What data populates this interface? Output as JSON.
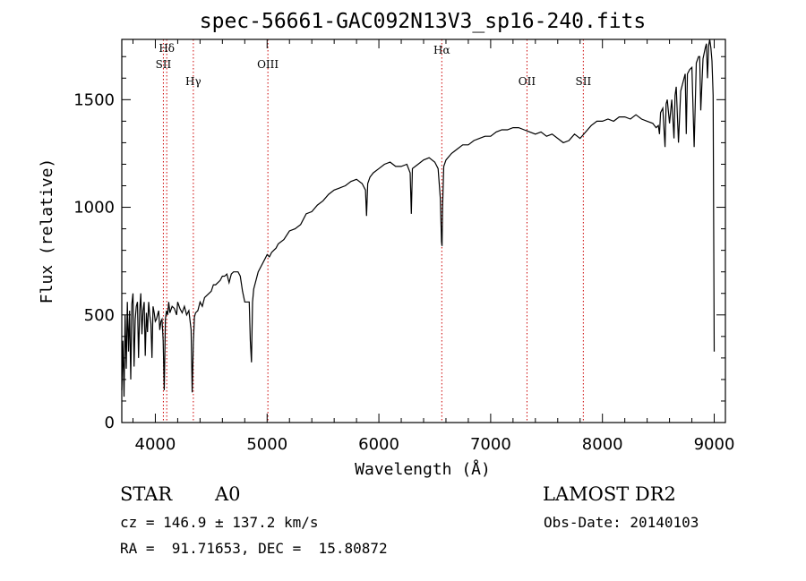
{
  "chart_data": {
    "type": "line",
    "title": "spec-56661-GAC092N13V3_sp16-240.fits",
    "xlabel": "Wavelength (Å)",
    "ylabel": "Flux (relative)",
    "xlim": [
      3700,
      9100
    ],
    "ylim": [
      0,
      1780
    ],
    "xticks": [
      4000,
      5000,
      6000,
      7000,
      8000,
      9000
    ],
    "yticks": [
      0,
      500,
      1000,
      1500
    ],
    "grid": false,
    "line_color": "#000000",
    "marker_color": "#cc0000",
    "line_markers": [
      {
        "label": "Hδ",
        "x": 4102
      },
      {
        "label": "SII",
        "x": 4072
      },
      {
        "label": "Hγ",
        "x": 4340
      },
      {
        "label": "OIII",
        "x": 5007
      },
      {
        "label": "Hα",
        "x": 6563
      },
      {
        "label": "OII",
        "x": 7325
      },
      {
        "label": "SII",
        "x": 7829
      }
    ],
    "series": [
      {
        "x": [
          3700,
          3710,
          3720,
          3730,
          3740,
          3750,
          3760,
          3770,
          3780,
          3790,
          3800,
          3810,
          3820,
          3830,
          3840,
          3850,
          3860,
          3870,
          3880,
          3890,
          3900,
          3910,
          3920,
          3930,
          3940,
          3950,
          3960,
          3970,
          3980,
          3990,
          4000,
          4010,
          4020,
          4030,
          4040,
          4050,
          4060,
          4070,
          4080,
          4090,
          4100,
          4110,
          4120,
          4130,
          4150,
          4170,
          4190,
          4200,
          4220,
          4240,
          4260,
          4280,
          4300,
          4320,
          4330,
          4340,
          4350,
          4360,
          4380,
          4400,
          4420,
          4440,
          4460,
          4480,
          4500,
          4520,
          4540,
          4560,
          4580,
          4600,
          4620,
          4640,
          4660,
          4680,
          4700,
          4720,
          4740,
          4760,
          4780,
          4800,
          4820,
          4840,
          4850,
          4860,
          4870,
          4880,
          4900,
          4920,
          4940,
          4960,
          4980,
          5000,
          5020,
          5040,
          5060,
          5080,
          5100,
          5150,
          5200,
          5250,
          5300,
          5350,
          5400,
          5450,
          5500,
          5550,
          5600,
          5650,
          5700,
          5750,
          5800,
          5850,
          5880,
          5890,
          5900,
          5920,
          5950,
          6000,
          6050,
          6100,
          6150,
          6200,
          6250,
          6280,
          6290,
          6300,
          6350,
          6400,
          6450,
          6500,
          6530,
          6550,
          6560,
          6565,
          6570,
          6580,
          6600,
          6650,
          6700,
          6750,
          6800,
          6850,
          6900,
          6950,
          7000,
          7050,
          7100,
          7150,
          7200,
          7250,
          7300,
          7350,
          7400,
          7450,
          7500,
          7550,
          7600,
          7650,
          7700,
          7750,
          7800,
          7850,
          7900,
          7950,
          8000,
          8050,
          8100,
          8150,
          8200,
          8250,
          8300,
          8350,
          8400,
          8450,
          8480,
          8500,
          8510,
          8520,
          8540,
          8560,
          8570,
          8580,
          8600,
          8620,
          8640,
          8650,
          8660,
          8680,
          8700,
          8720,
          8740,
          8750,
          8760,
          8780,
          8800,
          8820,
          8840,
          8860,
          8870,
          8880,
          8900,
          8920,
          8930,
          8940,
          8950,
          8960,
          8970,
          8980,
          8990,
          9000
        ],
        "y": [
          150,
          380,
          120,
          500,
          250,
          560,
          330,
          520,
          200,
          550,
          600,
          260,
          480,
          540,
          560,
          300,
          520,
          600,
          410,
          520,
          560,
          310,
          510,
          420,
          560,
          500,
          460,
          300,
          540,
          510,
          470,
          480,
          500,
          520,
          430,
          470,
          480,
          380,
          150,
          480,
          520,
          500,
          560,
          510,
          540,
          530,
          500,
          560,
          530,
          510,
          540,
          500,
          520,
          430,
          140,
          370,
          490,
          510,
          520,
          560,
          540,
          580,
          590,
          600,
          610,
          640,
          640,
          650,
          660,
          680,
          680,
          690,
          650,
          690,
          700,
          700,
          700,
          680,
          610,
          560,
          560,
          560,
          380,
          280,
          560,
          620,
          660,
          700,
          720,
          740,
          760,
          780,
          770,
          790,
          800,
          810,
          830,
          850,
          890,
          900,
          920,
          970,
          980,
          1010,
          1030,
          1060,
          1080,
          1090,
          1100,
          1120,
          1130,
          1110,
          1080,
          960,
          1110,
          1140,
          1160,
          1180,
          1200,
          1210,
          1190,
          1190,
          1200,
          1160,
          970,
          1180,
          1200,
          1220,
          1230,
          1210,
          1180,
          1040,
          840,
          820,
          1000,
          1190,
          1220,
          1250,
          1270,
          1290,
          1290,
          1310,
          1320,
          1330,
          1330,
          1350,
          1360,
          1360,
          1370,
          1370,
          1360,
          1350,
          1340,
          1350,
          1330,
          1340,
          1320,
          1300,
          1310,
          1340,
          1320,
          1350,
          1380,
          1400,
          1400,
          1410,
          1400,
          1420,
          1420,
          1410,
          1430,
          1410,
          1400,
          1390,
          1370,
          1380,
          1340,
          1440,
          1460,
          1280,
          1480,
          1500,
          1390,
          1500,
          1320,
          1520,
          1560,
          1300,
          1540,
          1580,
          1620,
          1340,
          1620,
          1640,
          1650,
          1280,
          1670,
          1700,
          1700,
          1450,
          1690,
          1740,
          1760,
          1600,
          1750,
          1780,
          1740,
          1680,
          1520,
          330
        ]
      }
    ]
  },
  "info": {
    "object_class": "STAR",
    "subclass": "A0",
    "survey": "LAMOST DR2",
    "redshift": "cz = 146.9 ± 137.2 km/s",
    "obs_date": "Obs-Date: 20140103",
    "coords": "RA =  91.71653, DEC =  15.80872"
  }
}
